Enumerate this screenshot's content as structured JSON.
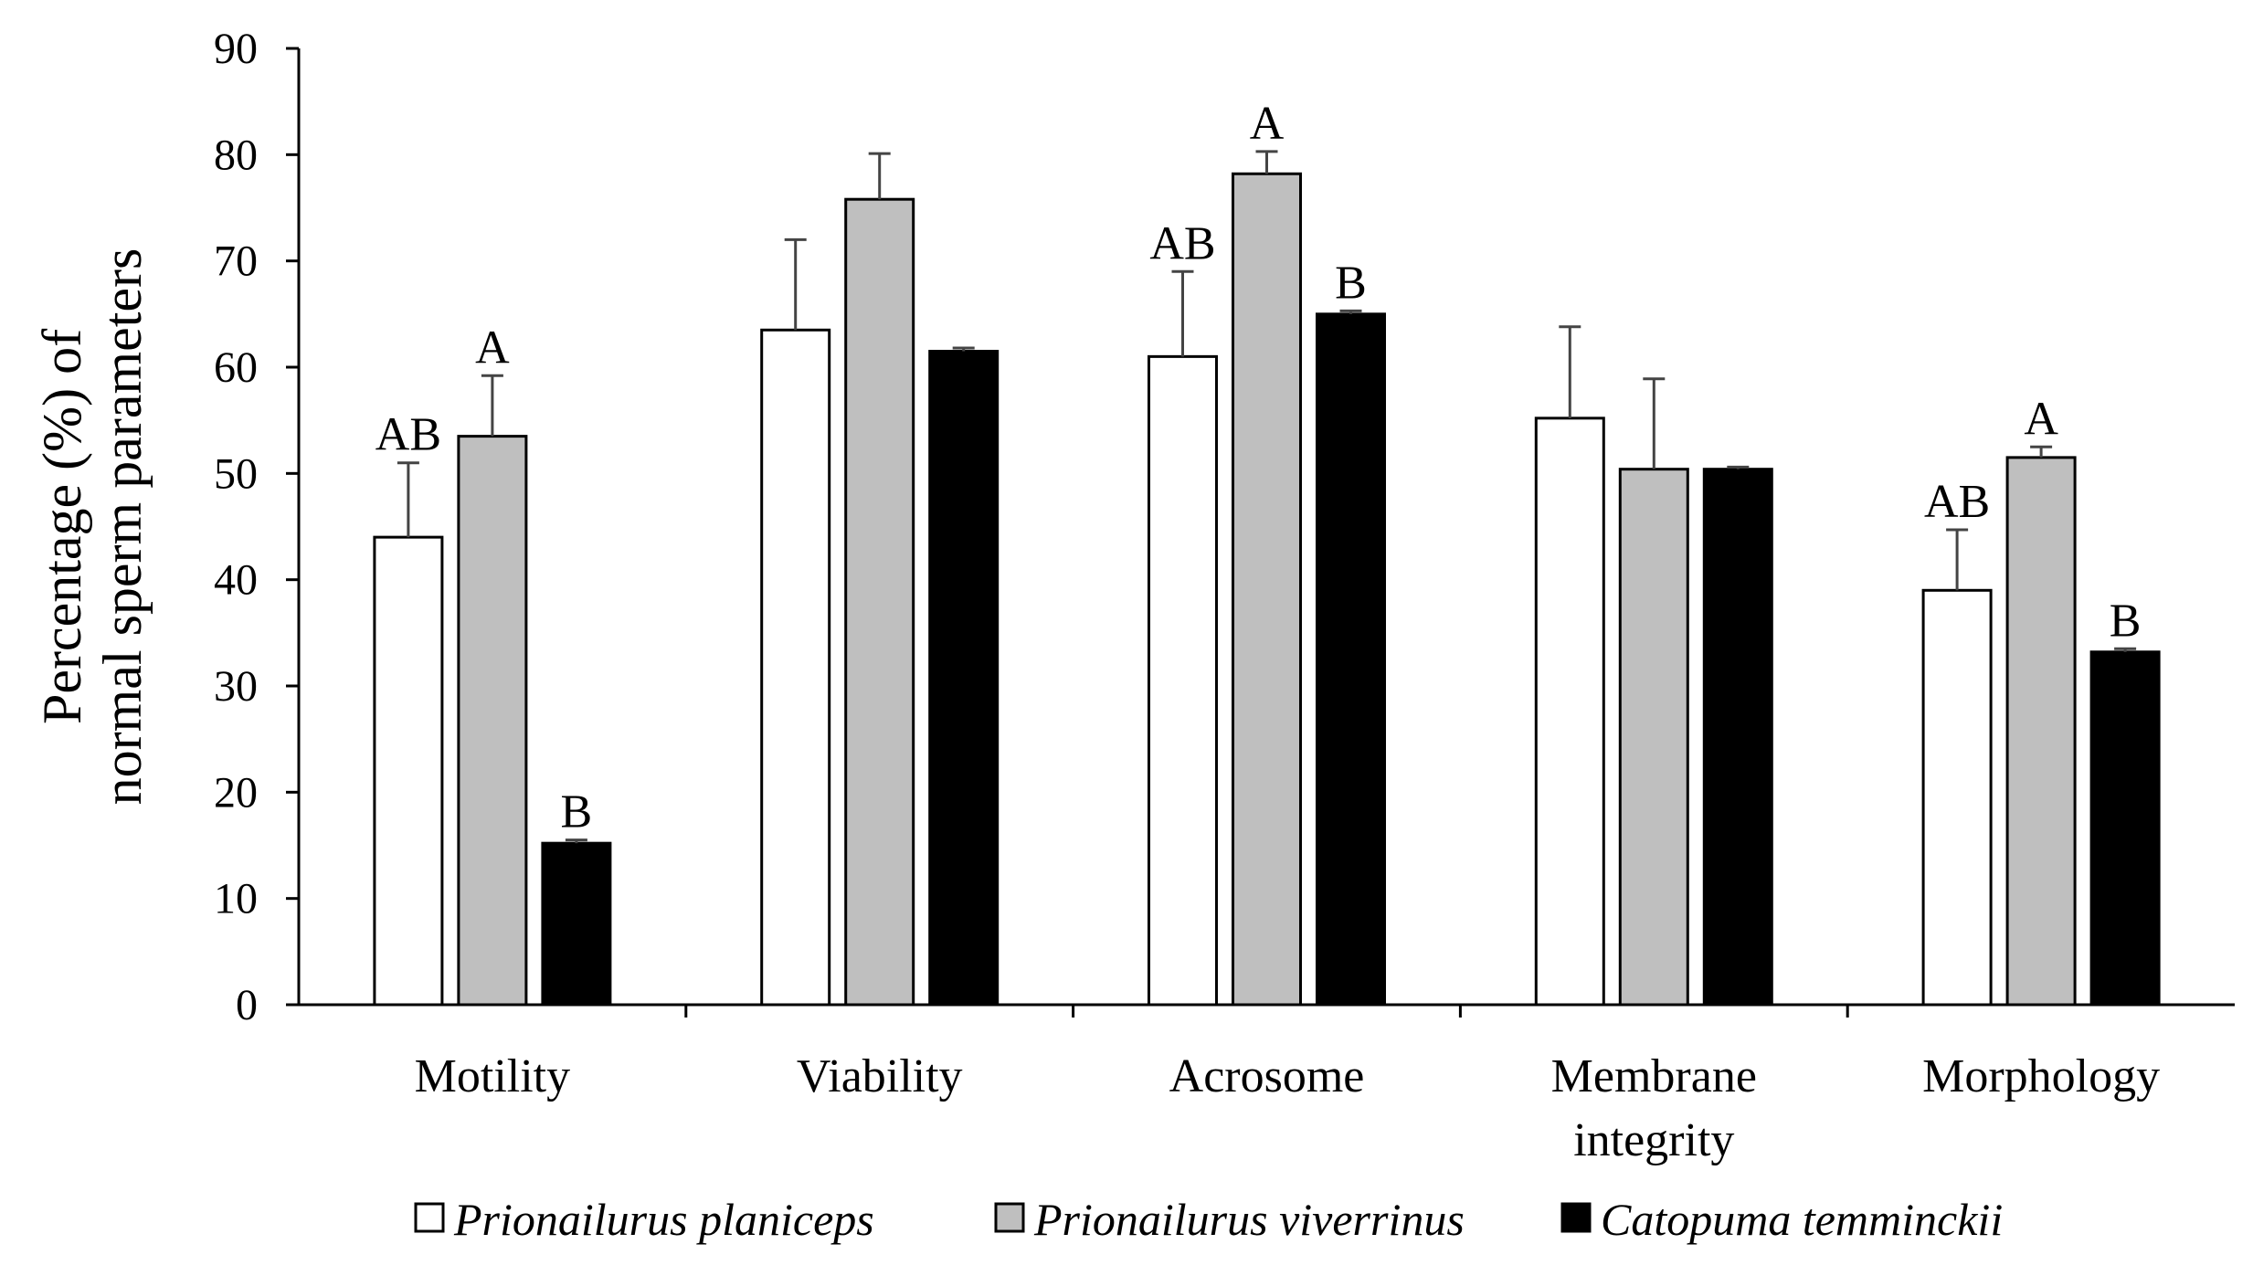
{
  "chart_data": {
    "type": "bar",
    "title": "",
    "xlabel": "",
    "ylabel_lines": [
      "Percentage (%) of",
      "normal sperm parameters"
    ],
    "ylim": [
      0,
      90
    ],
    "yticks": [
      0,
      10,
      20,
      30,
      40,
      50,
      60,
      70,
      80,
      90
    ],
    "categories": [
      [
        "Motility"
      ],
      [
        "Viability"
      ],
      [
        "Acrosome"
      ],
      [
        "Membrane",
        "integrity"
      ],
      [
        "Morphology"
      ]
    ],
    "series": [
      {
        "name": "Prionailurus planiceps",
        "color": "#ffffff",
        "values": [
          44,
          63.5,
          61,
          55.2,
          39
        ],
        "errors": [
          7,
          8.5,
          8,
          8.6,
          5.7
        ],
        "sig": [
          "AB",
          "",
          "AB",
          "",
          "AB"
        ]
      },
      {
        "name": "Prionailurus viverrinus",
        "color": "#bfbfbf",
        "values": [
          53.5,
          75.8,
          78.2,
          50.4,
          51.5
        ],
        "errors": [
          5.7,
          4.3,
          2.1,
          8.5,
          1
        ],
        "sig": [
          "A",
          "",
          "A",
          "",
          "A"
        ]
      },
      {
        "name": "Catopuma temminckii",
        "color": "#000000",
        "values": [
          15.2,
          61.5,
          65,
          50.4,
          33.2
        ],
        "errors": [
          0.3,
          0.3,
          0.3,
          0.2,
          0.3
        ],
        "sig": [
          "B",
          "",
          "B",
          "",
          "B"
        ]
      }
    ],
    "legend_position": "bottom"
  }
}
